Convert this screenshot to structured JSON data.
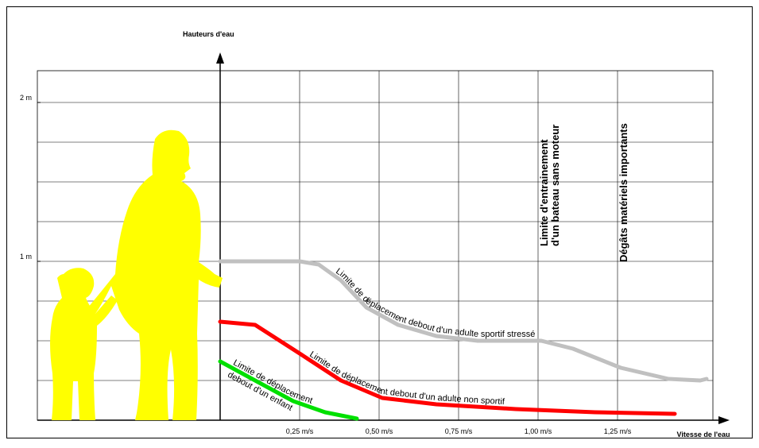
{
  "chart_data": {
    "type": "line",
    "y_label": "Hauteurs d'eau",
    "x_label": "Vitesse de l'eau",
    "xlim": [
      -0.575,
      1.55
    ],
    "ylim": [
      0,
      2.2
    ],
    "xticks": [
      {
        "value": 0.25,
        "label": "0,25 m/s"
      },
      {
        "value": 0.5,
        "label": "0,50 m/s"
      },
      {
        "value": 0.75,
        "label": "0,75 m/s"
      },
      {
        "value": 1,
        "label": "1,00 m/s"
      },
      {
        "value": 1.25,
        "label": "1,25 m/s"
      }
    ],
    "yticks": [
      {
        "value": 1,
        "label": "1 m"
      },
      {
        "value": 2,
        "label": "2 m"
      }
    ],
    "ygrid": [
      0.25,
      0.5,
      0.75,
      1,
      1.25,
      1.5,
      1.75,
      2
    ],
    "grid": true,
    "series": [
      {
        "label": [
          "Limite de déplacement debout d'un adulte sportif stressé"
        ],
        "color": "#c0c0c0",
        "x": [
          0,
          0.25,
          0.31,
          0.38,
          0.46,
          0.56,
          0.68,
          0.81,
          1.01,
          1.11,
          1.26,
          1.41,
          1.51,
          1.53
        ],
        "values": [
          1.0,
          1.0,
          0.98,
          0.88,
          0.71,
          0.6,
          0.53,
          0.5,
          0.5,
          0.45,
          0.33,
          0.26,
          0.25,
          0.26
        ]
      },
      {
        "label": [
          "Limite de déplacement debout d'un adulte non sportif"
        ],
        "color": "#ff0000",
        "x": [
          0,
          0.11,
          0.25,
          0.38,
          0.51,
          0.68,
          0.93,
          1.18,
          1.43
        ],
        "values": [
          0.62,
          0.6,
          0.42,
          0.25,
          0.14,
          0.1,
          0.07,
          0.05,
          0.04
        ]
      },
      {
        "label": [
          "Limite de déplacement",
          "debout d'un enfant"
        ],
        "color": "#00e000",
        "x": [
          0,
          0.11,
          0.23,
          0.33,
          0.43
        ],
        "values": [
          0.37,
          0.25,
          0.12,
          0.05,
          0.01
        ]
      }
    ],
    "annotations": [
      {
        "x": 1.0,
        "lines": [
          "Limite d'entrainement",
          "d'un bateau sans moteur"
        ]
      },
      {
        "x": 1.25,
        "lines": [
          "Dégâts matériels importants"
        ]
      }
    ]
  }
}
